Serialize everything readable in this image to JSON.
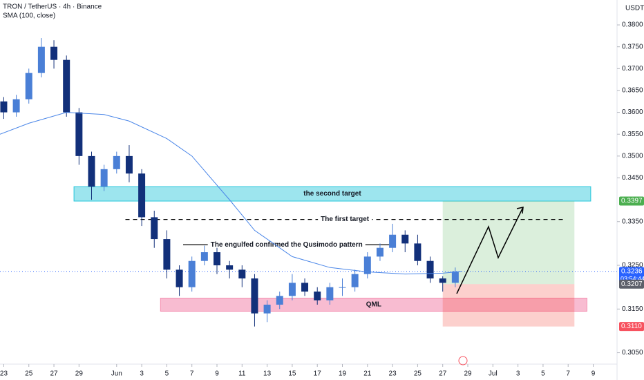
{
  "chart_data": {
    "type": "candlestick",
    "title": "TRON / TetherUS · 4h · Binance",
    "subtitle": "SMA (100, close)",
    "currency": "USDT",
    "up_color": "#4a7fd6",
    "down_color": "#12307a",
    "x": [
      0,
      1,
      2,
      3,
      4,
      5,
      6,
      7,
      8,
      9,
      10,
      11,
      12,
      13,
      14,
      15,
      16,
      17,
      18,
      19,
      20,
      21,
      22,
      23,
      24,
      25,
      26,
      27,
      28,
      29,
      30,
      31,
      32,
      33,
      34,
      35,
      36
    ],
    "open": [
      0.3625,
      0.36,
      0.363,
      0.369,
      0.375,
      0.372,
      0.36,
      0.35,
      0.343,
      0.347,
      0.35,
      0.346,
      0.336,
      0.331,
      0.324,
      0.32,
      0.326,
      0.328,
      0.325,
      0.324,
      0.322,
      0.314,
      0.316,
      0.318,
      0.321,
      0.319,
      0.317,
      0.32,
      0.32,
      0.323,
      0.327,
      0.329,
      0.332,
      0.33,
      0.326,
      0.322,
      0.321
    ],
    "high": [
      0.3635,
      0.364,
      0.37,
      0.377,
      0.3765,
      0.373,
      0.361,
      0.351,
      0.348,
      0.351,
      0.3525,
      0.347,
      0.3375,
      0.333,
      0.325,
      0.327,
      0.3295,
      0.329,
      0.326,
      0.325,
      0.323,
      0.317,
      0.319,
      0.323,
      0.322,
      0.32,
      0.321,
      0.322,
      0.324,
      0.328,
      0.33,
      0.3345,
      0.333,
      0.332,
      0.327,
      0.3225,
      0.3245
    ],
    "low": [
      0.3585,
      0.359,
      0.362,
      0.368,
      0.37,
      0.359,
      0.348,
      0.34,
      0.342,
      0.346,
      0.344,
      0.334,
      0.329,
      0.322,
      0.318,
      0.319,
      0.325,
      0.323,
      0.322,
      0.32,
      0.311,
      0.312,
      0.315,
      0.317,
      0.318,
      0.316,
      0.316,
      0.318,
      0.319,
      0.322,
      0.326,
      0.328,
      0.328,
      0.325,
      0.321,
      0.319,
      0.32
    ],
    "close": [
      0.36,
      0.363,
      0.369,
      0.375,
      0.372,
      0.36,
      0.35,
      0.343,
      0.347,
      0.35,
      0.346,
      0.336,
      0.331,
      0.324,
      0.32,
      0.326,
      0.328,
      0.325,
      0.324,
      0.322,
      0.314,
      0.316,
      0.318,
      0.321,
      0.319,
      0.317,
      0.32,
      0.32,
      0.323,
      0.327,
      0.329,
      0.332,
      0.33,
      0.326,
      0.322,
      0.321,
      0.3236
    ],
    "sma": {
      "color": "#4a86e8",
      "x": [
        -0.3,
        2,
        5,
        8,
        10,
        13,
        15,
        18,
        20,
        23,
        26,
        29,
        32,
        35,
        36.5
      ],
      "values": [
        0.355,
        0.3575,
        0.36,
        0.3595,
        0.358,
        0.354,
        0.35,
        0.34,
        0.333,
        0.327,
        0.3245,
        0.3235,
        0.323,
        0.3232,
        0.3236
      ]
    },
    "xlim": [
      -0.3,
      48.9
    ],
    "ylim": [
      0.3024,
      0.3857
    ],
    "xticks": [
      {
        "value": 0,
        "label": "23"
      },
      {
        "value": 2,
        "label": "25"
      },
      {
        "value": 4,
        "label": "27"
      },
      {
        "value": 6,
        "label": "29"
      },
      {
        "value": 9,
        "label": "Jun"
      },
      {
        "value": 11,
        "label": "3"
      },
      {
        "value": 13,
        "label": "5"
      },
      {
        "value": 15,
        "label": "7"
      },
      {
        "value": 17,
        "label": "9"
      },
      {
        "value": 19,
        "label": "11"
      },
      {
        "value": 21,
        "label": "13"
      },
      {
        "value": 23,
        "label": "15"
      },
      {
        "value": 25,
        "label": "17"
      },
      {
        "value": 27,
        "label": "19"
      },
      {
        "value": 29,
        "label": "21"
      },
      {
        "value": 31,
        "label": "23"
      },
      {
        "value": 33,
        "label": "25"
      },
      {
        "value": 35,
        "label": "27"
      },
      {
        "value": 37,
        "label": "29"
      },
      {
        "value": 39,
        "label": "Jul"
      },
      {
        "value": 41,
        "label": "3"
      },
      {
        "value": 43,
        "label": "5"
      },
      {
        "value": 45,
        "label": "7"
      },
      {
        "value": 47,
        "label": "9"
      }
    ],
    "yticks": [
      {
        "value": 0.305,
        "label": "0.3050"
      },
      {
        "value": 0.315,
        "label": "0.3150"
      },
      {
        "value": 0.325,
        "label": "0.3250"
      },
      {
        "value": 0.335,
        "label": "0.3350"
      },
      {
        "value": 0.345,
        "label": "0.3450"
      },
      {
        "value": 0.35,
        "label": "0.3500"
      },
      {
        "value": 0.355,
        "label": "0.3550"
      },
      {
        "value": 0.36,
        "label": "0.3600"
      },
      {
        "value": 0.365,
        "label": "0.3650"
      },
      {
        "value": 0.37,
        "label": "0.3700"
      },
      {
        "value": 0.375,
        "label": "0.3750"
      },
      {
        "value": 0.38,
        "label": "0.3800"
      }
    ],
    "zones": [
      {
        "label": "the second target",
        "color": "rgba(38,198,218,0.45)",
        "stroke": "#26c6da",
        "xlim": [
          5.6,
          46.8
        ],
        "ylim": [
          0.3397,
          0.343
        ]
      },
      {
        "label": "QML",
        "color": "rgba(236,64,122,0.35)",
        "stroke": "#f48fb1",
        "xlim": [
          12.5,
          46.5
        ],
        "ylim": [
          0.3145,
          0.3175
        ]
      },
      {
        "color": "rgba(76,175,80,0.2)",
        "xlim": [
          35,
          45.5
        ],
        "ylim": [
          0.3207,
          0.3397
        ]
      },
      {
        "color": "rgba(244,67,54,0.25)",
        "xlim": [
          35,
          45.5
        ],
        "ylim": [
          0.311,
          0.3207
        ]
      }
    ],
    "lines": [
      {
        "label": "The first target",
        "dashed": true,
        "xlim": [
          9.7,
          44.7
        ],
        "value": 0.3355
      },
      {
        "label": "The engulfed confirmed the Qusimodo pattern",
        "dashed": false,
        "xlim": [
          14.3,
          30.8
        ],
        "value": 0.3297
      }
    ],
    "price_badges": [
      {
        "value": 0.3397,
        "label": "0.3397",
        "color": "#4caf50"
      },
      {
        "value": 0.3236,
        "label": "0.3236",
        "sub": "03:54:44",
        "color": "#2962ff"
      },
      {
        "value": 0.3207,
        "label": "0.3207",
        "color": "#5d606b"
      },
      {
        "value": 0.311,
        "label": "0.3110",
        "color": "#f7525f"
      }
    ]
  }
}
